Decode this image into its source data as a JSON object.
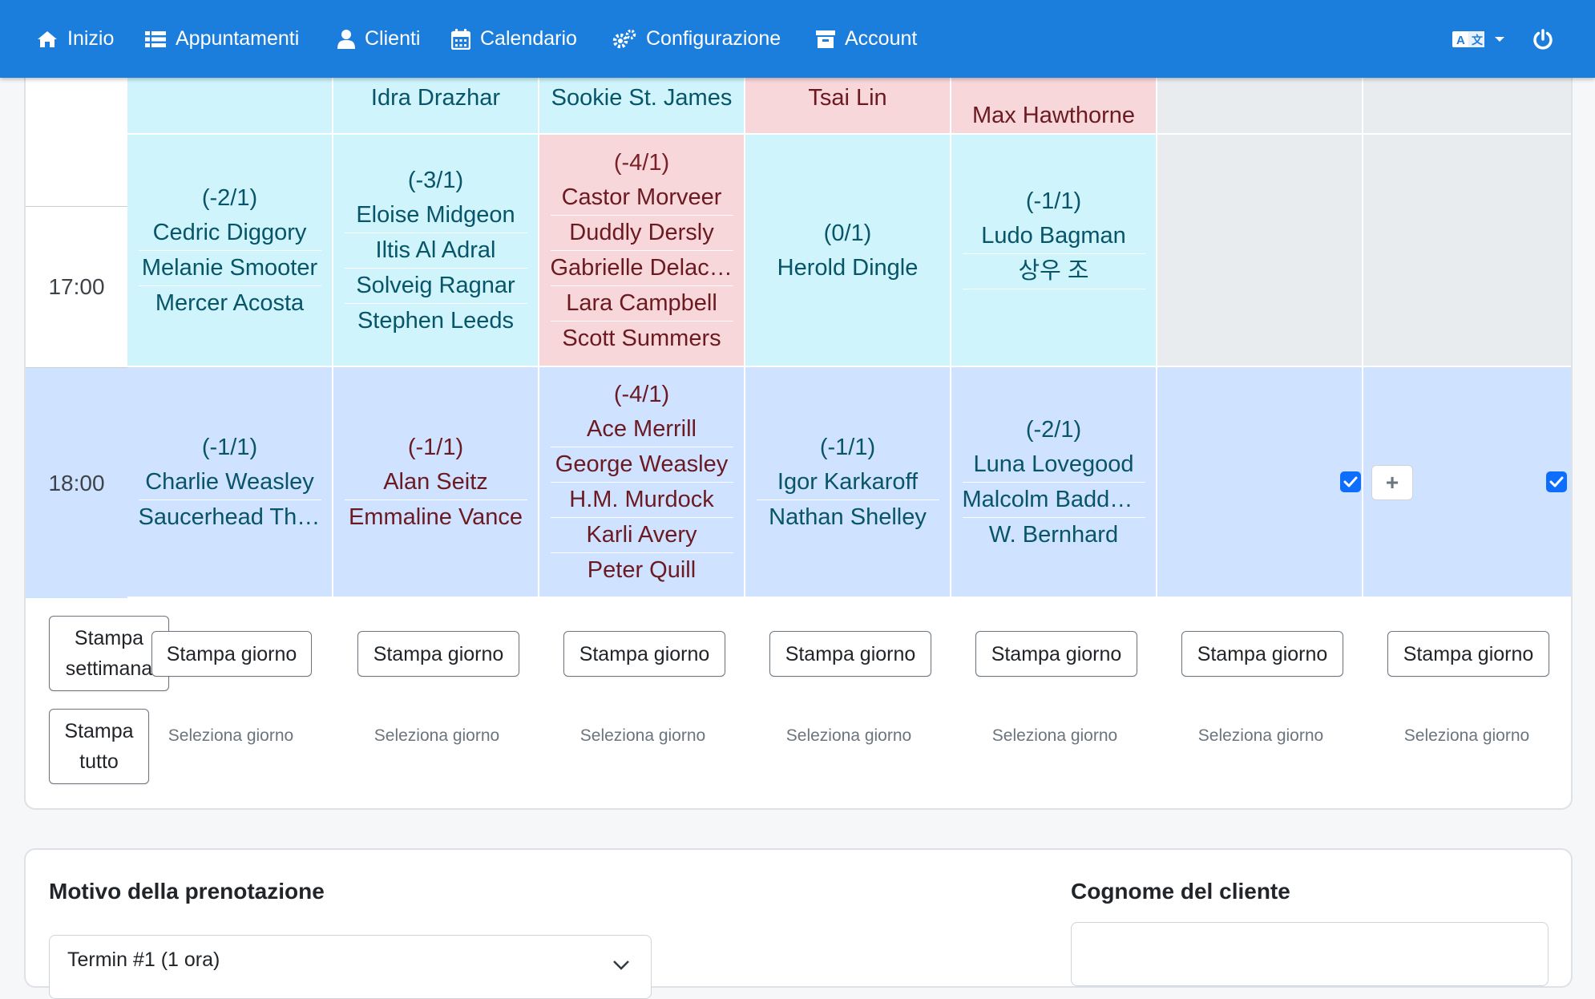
{
  "nav": {
    "items": [
      "Inizio",
      "Appuntamenti",
      "Clienti",
      "Calendario",
      "Configurazione",
      "Account"
    ]
  },
  "times": [
    "17:00",
    "18:00"
  ],
  "row_top": [
    {
      "names": [
        "Idra Drazhar"
      ]
    },
    {
      "names": [
        "Sookie St. James"
      ]
    },
    {
      "names": [
        "Tsai Lin"
      ]
    },
    {
      "names": [
        "Max Hawthorne"
      ]
    }
  ],
  "row_17": [
    {
      "count": "(-2/1)",
      "names": [
        "Cedric Diggory",
        "Melanie Smooter",
        "Mercer Acosta"
      ]
    },
    {
      "count": "(-3/1)",
      "names": [
        "Eloise Midgeon",
        "Iltis Al Adral",
        "Solveig Ragnar",
        "Stephen Leeds"
      ]
    },
    {
      "count": "(-4/1)",
      "names": [
        "Castor Morveer",
        "Duddly Dersly",
        "Gabrielle Delacour",
        "Lara Campbell",
        "Scott Summers"
      ]
    },
    {
      "count": "(0/1)",
      "names": [
        "Herold Dingle"
      ]
    },
    {
      "count": "(-1/1)",
      "names": [
        "Ludo Bagman",
        "상우 조"
      ]
    }
  ],
  "row_18": [
    {
      "count": "(-1/1)",
      "names": [
        "Charlie Weasley",
        "Saucerhead Tharpe"
      ]
    },
    {
      "count": "(-1/1)",
      "names": [
        "Alan Seitz",
        "Emmaline Vance"
      ]
    },
    {
      "count": "(-4/1)",
      "names": [
        "Ace Merrill",
        "George Weasley",
        "H.M. Murdock",
        "Karli Avery",
        "Peter Quill"
      ]
    },
    {
      "count": "(-1/1)",
      "names": [
        "Igor Karkaroff",
        "Nathan Shelley"
      ]
    },
    {
      "count": "(-2/1)",
      "names": [
        "Luna Lovegood",
        "Malcolm Baddock",
        "W. Bernhard"
      ]
    }
  ],
  "footer": {
    "print_week": "Stampa settimana",
    "select_all": "Stampa tutto",
    "print_day": "Stampa giorno",
    "select_day": "Seleziona giorno"
  },
  "plus_label": "+",
  "booking": {
    "reason_label": "Motivo della prenotazione",
    "reason_value": "Termin #1 (1 ora)",
    "surname_label": "Cognome del cliente"
  }
}
